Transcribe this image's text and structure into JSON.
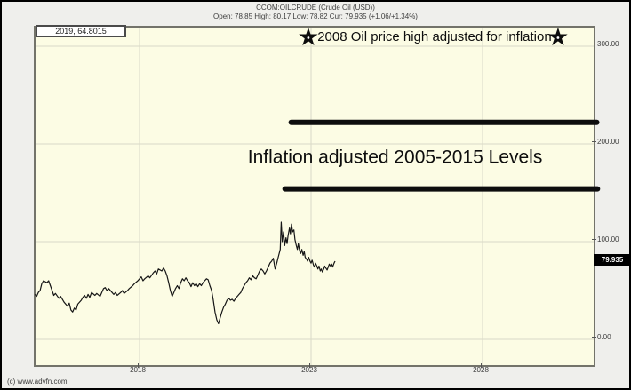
{
  "window": {
    "title_line1": "CCOM:OILCRUDE (Crude Oil (USD))",
    "title_line2": "Open: 78.85 High: 80.17 Low: 78.82 Cur: 79.935 (+1.06/+1.34%)",
    "copyright": "(c) www.advfn.com"
  },
  "tooltip": {
    "text": "2019, 64.8015"
  },
  "price_flag": {
    "value": "79.935"
  },
  "colors": {
    "plot_bg": "#fcfce4",
    "grid": "#d9d9c7",
    "price_line": "#161616",
    "annotation": "#0d0d0d",
    "flag_bg": "#000000",
    "flag_fg": "#ffffff"
  },
  "chart_data": {
    "type": "line",
    "title": "CCOM:OILCRUDE (Crude Oil (USD))",
    "xlabel": "",
    "ylabel": "",
    "grid": true,
    "legend_position": "none",
    "x_axis": {
      "ticks": [
        2018,
        2023,
        2028
      ],
      "labels": [
        "2018",
        "2023",
        "2028"
      ],
      "range": [
        2014.95,
        2031.2
      ]
    },
    "y_axis": {
      "ticks": [
        0,
        100,
        200,
        300
      ],
      "labels": [
        "0.00",
        "100.00",
        "200.00",
        "300.00"
      ],
      "range": [
        -20,
        325
      ]
    },
    "series": [
      {
        "name": "Crude Oil (USD)",
        "points": [
          [
            2014.95,
            46
          ],
          [
            2015.0,
            44
          ],
          [
            2015.05,
            48
          ],
          [
            2015.1,
            50
          ],
          [
            2015.15,
            57
          ],
          [
            2015.2,
            60
          ],
          [
            2015.3,
            58
          ],
          [
            2015.35,
            60
          ],
          [
            2015.45,
            50
          ],
          [
            2015.5,
            45
          ],
          [
            2015.55,
            47
          ],
          [
            2015.65,
            42
          ],
          [
            2015.7,
            44
          ],
          [
            2015.8,
            38
          ],
          [
            2015.9,
            34
          ],
          [
            2015.95,
            37
          ],
          [
            2016.0,
            30
          ],
          [
            2016.05,
            28
          ],
          [
            2016.1,
            32
          ],
          [
            2016.15,
            30
          ],
          [
            2016.2,
            36
          ],
          [
            2016.3,
            40
          ],
          [
            2016.35,
            43
          ],
          [
            2016.4,
            45
          ],
          [
            2016.45,
            42
          ],
          [
            2016.5,
            46
          ],
          [
            2016.55,
            43
          ],
          [
            2016.6,
            48
          ],
          [
            2016.7,
            45
          ],
          [
            2016.75,
            47
          ],
          [
            2016.85,
            44
          ],
          [
            2016.95,
            52
          ],
          [
            2017.0,
            53
          ],
          [
            2017.05,
            50
          ],
          [
            2017.1,
            52
          ],
          [
            2017.2,
            48
          ],
          [
            2017.25,
            46
          ],
          [
            2017.3,
            48
          ],
          [
            2017.35,
            45
          ],
          [
            2017.45,
            48
          ],
          [
            2017.5,
            50
          ],
          [
            2017.55,
            47
          ],
          [
            2017.65,
            50
          ],
          [
            2017.7,
            52
          ],
          [
            2017.8,
            55
          ],
          [
            2017.85,
            57
          ],
          [
            2017.95,
            60
          ],
          [
            2018.0,
            62
          ],
          [
            2018.05,
            64
          ],
          [
            2018.1,
            60
          ],
          [
            2018.15,
            62
          ],
          [
            2018.25,
            65
          ],
          [
            2018.3,
            63
          ],
          [
            2018.4,
            68
          ],
          [
            2018.45,
            70
          ],
          [
            2018.5,
            67
          ],
          [
            2018.55,
            72
          ],
          [
            2018.65,
            70
          ],
          [
            2018.7,
            73
          ],
          [
            2018.75,
            70
          ],
          [
            2018.8,
            65
          ],
          [
            2018.85,
            58
          ],
          [
            2018.9,
            50
          ],
          [
            2018.95,
            44
          ],
          [
            2019.0,
            48
          ],
          [
            2019.05,
            52
          ],
          [
            2019.1,
            55
          ],
          [
            2019.15,
            52
          ],
          [
            2019.2,
            58
          ],
          [
            2019.25,
            62
          ],
          [
            2019.3,
            60
          ],
          [
            2019.35,
            63
          ],
          [
            2019.4,
            60
          ],
          [
            2019.45,
            58
          ],
          [
            2019.5,
            54
          ],
          [
            2019.55,
            58
          ],
          [
            2019.6,
            55
          ],
          [
            2019.65,
            57
          ],
          [
            2019.7,
            54
          ],
          [
            2019.75,
            57
          ],
          [
            2019.8,
            55
          ],
          [
            2019.85,
            58
          ],
          [
            2019.9,
            60
          ],
          [
            2019.95,
            62
          ],
          [
            2020.0,
            61
          ],
          [
            2020.05,
            55
          ],
          [
            2020.1,
            50
          ],
          [
            2020.15,
            40
          ],
          [
            2020.2,
            28
          ],
          [
            2020.25,
            20
          ],
          [
            2020.3,
            16
          ],
          [
            2020.35,
            22
          ],
          [
            2020.4,
            28
          ],
          [
            2020.45,
            33
          ],
          [
            2020.5,
            36
          ],
          [
            2020.55,
            40
          ],
          [
            2020.6,
            42
          ],
          [
            2020.65,
            40
          ],
          [
            2020.7,
            41
          ],
          [
            2020.75,
            39
          ],
          [
            2020.8,
            42
          ],
          [
            2020.85,
            44
          ],
          [
            2020.9,
            46
          ],
          [
            2020.95,
            48
          ],
          [
            2021.0,
            52
          ],
          [
            2021.05,
            55
          ],
          [
            2021.1,
            58
          ],
          [
            2021.15,
            60
          ],
          [
            2021.2,
            63
          ],
          [
            2021.25,
            61
          ],
          [
            2021.3,
            65
          ],
          [
            2021.35,
            63
          ],
          [
            2021.4,
            62
          ],
          [
            2021.45,
            66
          ],
          [
            2021.5,
            70
          ],
          [
            2021.55,
            72
          ],
          [
            2021.6,
            70
          ],
          [
            2021.65,
            67
          ],
          [
            2021.7,
            70
          ],
          [
            2021.75,
            74
          ],
          [
            2021.8,
            78
          ],
          [
            2021.85,
            80
          ],
          [
            2021.9,
            83
          ],
          [
            2021.95,
            72
          ],
          [
            2022.0,
            78
          ],
          [
            2022.05,
            85
          ],
          [
            2022.1,
            92
          ],
          [
            2022.13,
            120
          ],
          [
            2022.16,
            100
          ],
          [
            2022.2,
            110
          ],
          [
            2022.23,
            96
          ],
          [
            2022.27,
            104
          ],
          [
            2022.3,
            98
          ],
          [
            2022.33,
            106
          ],
          [
            2022.37,
            114
          ],
          [
            2022.4,
            108
          ],
          [
            2022.43,
            118
          ],
          [
            2022.46,
            110
          ],
          [
            2022.5,
            112
          ],
          [
            2022.53,
            102
          ],
          [
            2022.57,
            96
          ],
          [
            2022.6,
            92
          ],
          [
            2022.63,
            98
          ],
          [
            2022.67,
            90
          ],
          [
            2022.7,
            88
          ],
          [
            2022.73,
            92
          ],
          [
            2022.77,
            86
          ],
          [
            2022.8,
            90
          ],
          [
            2022.83,
            84
          ],
          [
            2022.87,
            82
          ],
          [
            2022.9,
            80
          ],
          [
            2022.93,
            84
          ],
          [
            2022.97,
            80
          ],
          [
            2023.0,
            78
          ],
          [
            2023.03,
            81
          ],
          [
            2023.07,
            76
          ],
          [
            2023.1,
            74
          ],
          [
            2023.13,
            78
          ],
          [
            2023.17,
            75
          ],
          [
            2023.2,
            72
          ],
          [
            2023.23,
            75
          ],
          [
            2023.27,
            70
          ],
          [
            2023.3,
            72
          ],
          [
            2023.33,
            69
          ],
          [
            2023.37,
            72
          ],
          [
            2023.4,
            75
          ],
          [
            2023.43,
            73
          ],
          [
            2023.47,
            71
          ],
          [
            2023.5,
            74
          ],
          [
            2023.53,
            77
          ],
          [
            2023.57,
            75
          ],
          [
            2023.6,
            77
          ],
          [
            2023.63,
            74
          ],
          [
            2023.67,
            78
          ],
          [
            2023.7,
            80
          ]
        ]
      }
    ],
    "annotations": [
      {
        "kind": "star",
        "name": "star-left",
        "x": 2022.92,
        "y": 310
      },
      {
        "kind": "star",
        "name": "star-right",
        "x": 2030.2,
        "y": 310
      },
      {
        "kind": "text",
        "name": "note-2008-high",
        "style": "note",
        "text": "2008 Oil price high adjusted for inflation",
        "x": 2026.6,
        "y": 310
      },
      {
        "kind": "bar",
        "name": "upper-level-bar",
        "x1": 2022.42,
        "x2": 2031.33,
        "y": 222
      },
      {
        "kind": "bar",
        "name": "lower-level-bar",
        "x1": 2022.24,
        "x2": 2031.35,
        "y": 154
      },
      {
        "kind": "text",
        "name": "note-inflation-levels",
        "style": "levels",
        "text": "Inflation adjusted 2005-2015 Levels",
        "x": 2025.45,
        "y": 187
      }
    ]
  }
}
